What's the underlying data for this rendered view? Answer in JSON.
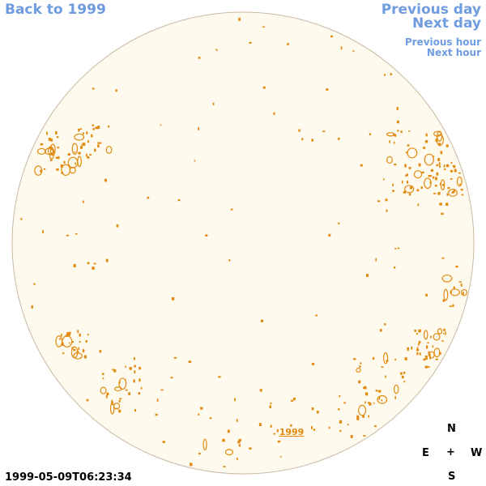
{
  "nav": {
    "back_label": "Back to 1999",
    "prev_day_label": "Previous day",
    "next_day_label": "Next day",
    "prev_hour_label": "Previous hour",
    "next_hour_label": "Next hour"
  },
  "year_label": "1999",
  "timestamp": "1999-05-09T06:23:34",
  "compass": {
    "north": "N",
    "south": "S",
    "east": "E",
    "west": "W",
    "center": "+"
  },
  "colors": {
    "disk_fill": "#fffaee",
    "disk_stroke": "#c9b9a3",
    "contour": "#e08a10",
    "link": "#6f9be0"
  }
}
